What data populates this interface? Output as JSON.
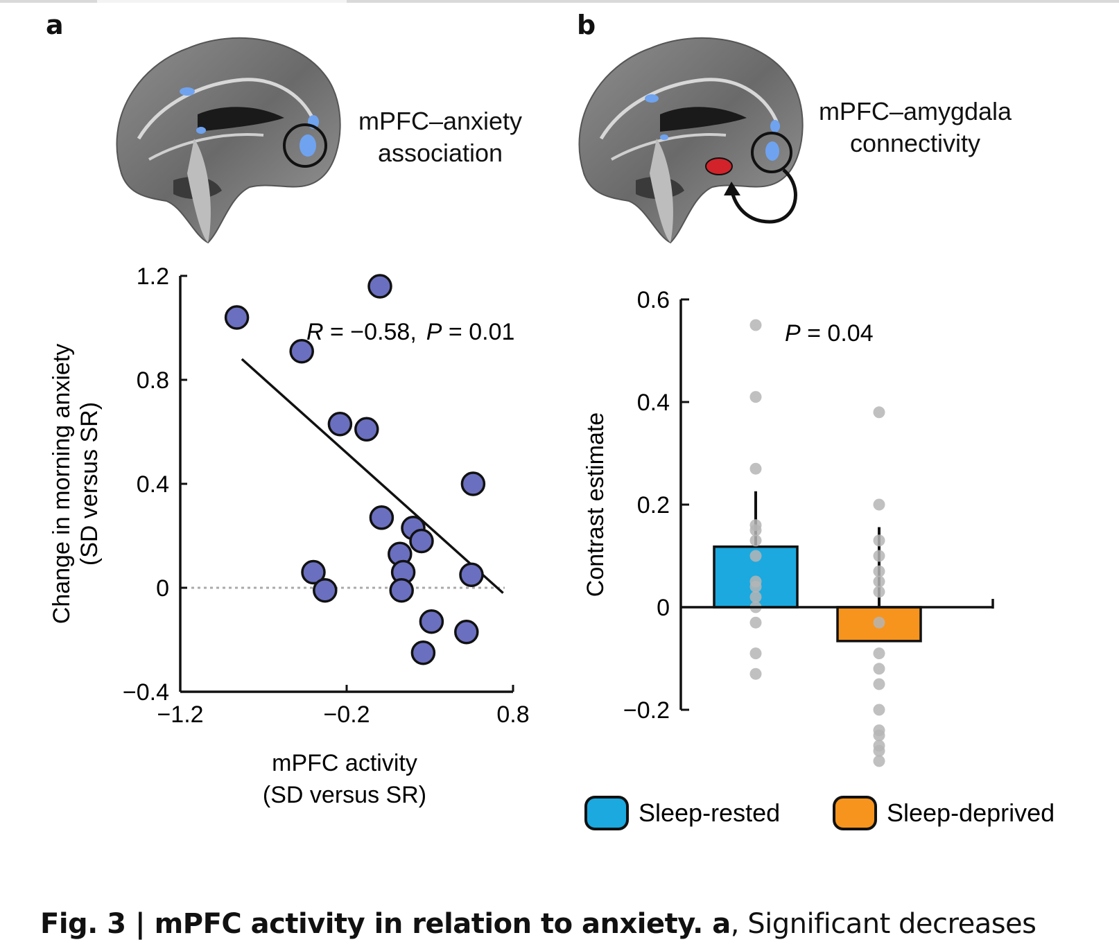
{
  "panels": {
    "a": {
      "letter": "a",
      "brain_label_line1": "mPFC–anxiety",
      "brain_label_line2": "association"
    },
    "b": {
      "letter": "b",
      "brain_label_line1": "mPFC–amygdala",
      "brain_label_line2": "connectivity"
    }
  },
  "caption": {
    "bold": "Fig. 3 | mPFC activity in relation to anxiety. a",
    "rest": ", Significant decreases"
  },
  "colors": {
    "scatter_point": "#6b6fbf",
    "sleep_rested": "#1ba9df",
    "sleep_deprived": "#f7941d",
    "dots": "#b5b5b5"
  },
  "chart_data": [
    {
      "type": "scatter",
      "xlabel_line1": "mPFC activity",
      "xlabel_line2": "(SD versus SR)",
      "ylabel_line1": "Change in morning anxiety",
      "ylabel_line2": "(SD versus SR)",
      "xlim": [
        -1.2,
        0.8
      ],
      "ylim": [
        -0.4,
        1.2
      ],
      "xticks": [
        -1.2,
        -0.2,
        0.8
      ],
      "xtick_labels": [
        "−1.2",
        "−0.2",
        "0.8"
      ],
      "yticks": [
        -0.4,
        0,
        0.4,
        0.8,
        1.2
      ],
      "ytick_labels": [
        "−0.4",
        "0",
        "0.4",
        "0.8",
        "1.2"
      ],
      "annotation_R": "R",
      "annotation_R_value": " =  −0.58,",
      "annotation_P": "P",
      "annotation_P_value": " = 0.01",
      "points": [
        {
          "x": -0.86,
          "y": 1.04
        },
        {
          "x": 0.0,
          "y": 1.16
        },
        {
          "x": -0.47,
          "y": 0.91
        },
        {
          "x": -0.24,
          "y": 0.63
        },
        {
          "x": -0.08,
          "y": 0.61
        },
        {
          "x": 0.56,
          "y": 0.4
        },
        {
          "x": 0.01,
          "y": 0.27
        },
        {
          "x": 0.2,
          "y": 0.23
        },
        {
          "x": 0.25,
          "y": 0.18
        },
        {
          "x": 0.12,
          "y": 0.13
        },
        {
          "x": 0.14,
          "y": 0.06
        },
        {
          "x": -0.4,
          "y": 0.06
        },
        {
          "x": 0.55,
          "y": 0.05
        },
        {
          "x": -0.33,
          "y": -0.01
        },
        {
          "x": 0.13,
          "y": -0.01
        },
        {
          "x": 0.31,
          "y": -0.13
        },
        {
          "x": 0.52,
          "y": -0.17
        },
        {
          "x": 0.26,
          "y": -0.25
        }
      ],
      "fit_line": {
        "x": [
          -0.83,
          0.74
        ],
        "y": [
          0.88,
          -0.02
        ]
      },
      "reference_line_y": 0
    },
    {
      "type": "bar",
      "ylabel": "Contrast estimate",
      "ylim": [
        -0.2,
        0.6
      ],
      "yticks": [
        -0.2,
        0,
        0.2,
        0.4,
        0.6
      ],
      "ytick_labels": [
        "−0.2",
        "0",
        "0.2",
        "0.4",
        "0.6"
      ],
      "annotation_P": "P",
      "annotation_P_value": " = 0.04",
      "categories": [
        "Sleep-rested",
        "Sleep-deprived"
      ],
      "values": [
        0.118,
        -0.066
      ],
      "error_upper": [
        0.226,
        0.156
      ],
      "individual_points": [
        [
          0.55,
          0.41,
          0.27,
          0.16,
          0.15,
          0.13,
          0.1,
          0.05,
          0.04,
          0.02,
          0.0,
          -0.03,
          -0.09,
          -0.13
        ],
        [
          0.38,
          0.2,
          0.13,
          0.1,
          0.07,
          0.05,
          0.03,
          -0.03,
          -0.09,
          -0.12,
          -0.15,
          -0.2,
          -0.24,
          -0.25,
          -0.27,
          -0.28,
          -0.3
        ]
      ],
      "legend": [
        "Sleep-rested",
        "Sleep-deprived"
      ],
      "legend_placement": "bottom"
    }
  ]
}
